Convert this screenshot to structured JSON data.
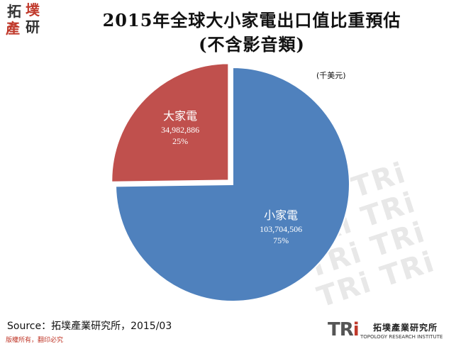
{
  "logo": {
    "chars": [
      "拓",
      "墣",
      "產",
      "研"
    ]
  },
  "title_line1": "2015年全球大小家電出口值比重預估",
  "title_line2": "(不含影音類)",
  "unit": "(千美元)",
  "watermark_text": [
    "TRi TRi",
    "TRi TRi",
    "TRi TRi",
    "TRi TRi"
  ],
  "chart_data": {
    "type": "pie",
    "slices": [
      {
        "name": "小家電",
        "value": 103704506,
        "value_label": "103,704,506",
        "percent": 75,
        "percent_label": "75%",
        "color": "#4f81bd",
        "exploded": false
      },
      {
        "name": "大家電",
        "value": 34982886,
        "value_label": "34,982,886",
        "percent": 25,
        "percent_label": "25%",
        "color": "#c0504d",
        "exploded": true
      }
    ]
  },
  "source": "Source：拓墣產業研究所，2015/03",
  "copyright": "版權所有，翻印必究",
  "footer": {
    "mark_tr": "TR",
    "mark_i": "i",
    "institute_cn": "拓墣產業研究所",
    "institute_en": "TOPOLOGY RESEARCH INSTITUTE"
  }
}
